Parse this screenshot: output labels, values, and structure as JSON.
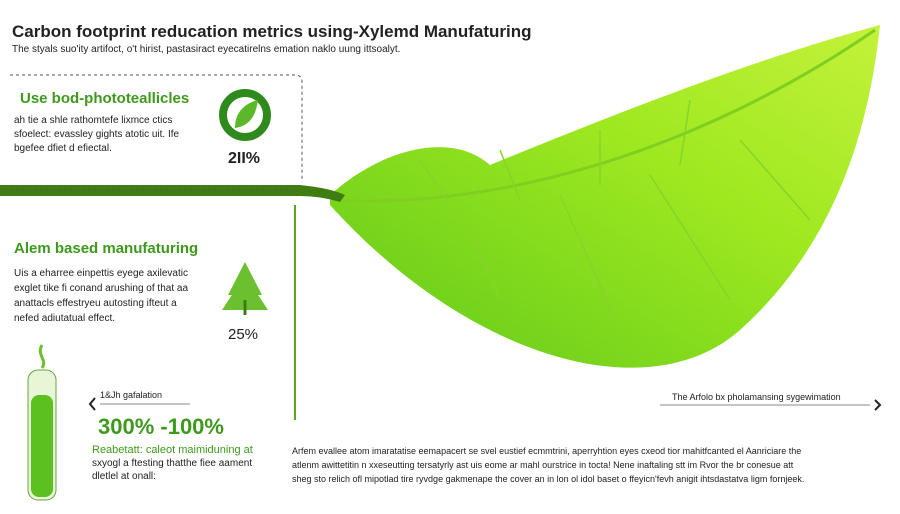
{
  "header": {
    "title": "Carbon footprint reducation metrics using-Xylemd Manufaturing",
    "subtitle": "The styals suo'ity artifoct, o't hirist, pastasiract eyecatirelns emation naklo uung ittsoalyt."
  },
  "sections": [
    {
      "heading": "Use bod-phototeallicles",
      "lines": [
        "ah tie a shle rathomtefe lixmce ctics",
        "sfoelect: evassley gights atotic uit. Ife",
        "bgefee dfiet d efiectal."
      ],
      "stat": "2II%"
    },
    {
      "heading": "Alem based manufaturing",
      "lines": [
        "Uis a eharree einpettis eyege axilevatic",
        "exglet tike fi conand arushing of that aa",
        "anattacls effestryeu autosting ifteut a",
        "nefed adiutatual effect."
      ],
      "stat": "25%"
    }
  ],
  "bottom_left": {
    "label": "1&Jh gafalation",
    "big": "300% -100%",
    "lines": [
      "Reabetatt: caleot maimiduning at",
      "sxyogl a ftesting thatthe fiee aament",
      "dletlel at onall:"
    ]
  },
  "bottom_right": {
    "label": "The Arfolo bx pholamansing sygewimation",
    "lines": [
      "Arfem evallee atom imaratatise eemapacert se svel eustief ecmmtrini, aperryhtion eyes cxeod tior mahitfcanted el Aanriciare the",
      "atlenm awittetitin n xxeseutting tersatyrly ast uis eome ar mahl ourstrice in tocta! Nene inaftaling stt im Rvor the br conesue att",
      "sheg sto relich ofl mipotlad tire ryvdge gakmenape the cover an in lon ol idol baset o ffeyicn'fevh anigit ihtsdastatva ligm fornjeek."
    ]
  }
}
